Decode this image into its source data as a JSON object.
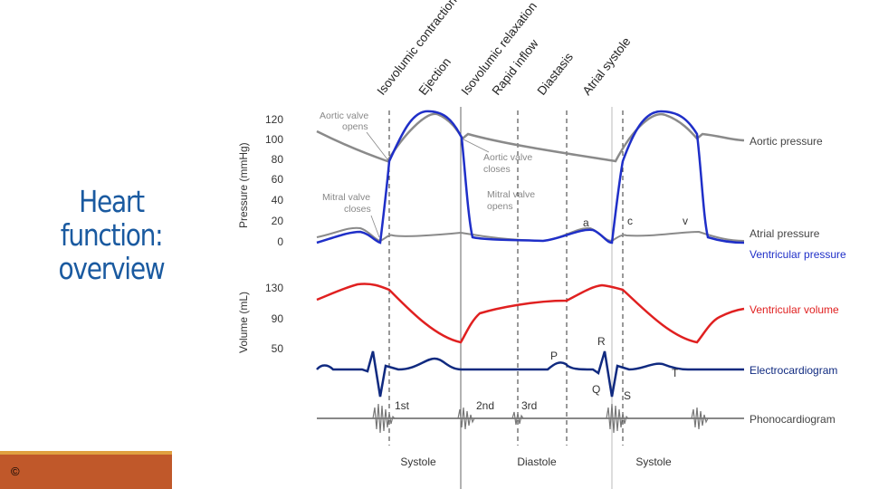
{
  "slide": {
    "title_lines": [
      "Heart",
      "function:",
      "overview"
    ],
    "copyright": "©"
  },
  "phases_top": [
    "Isovolumic contraction",
    "Ejection",
    "Isovolumic relaxation",
    "Rapid inflow",
    "Diastasis",
    "Atrial systole"
  ],
  "pressure_axis": {
    "label": "Pressure (mmHg)",
    "ticks": [
      "120",
      "100",
      "80",
      "60",
      "40",
      "20",
      "0"
    ]
  },
  "volume_axis": {
    "label": "Volume (mL)",
    "ticks": [
      "130",
      "90",
      "50"
    ]
  },
  "annotations": {
    "aortic_opens": [
      "Aortic valve",
      "opens"
    ],
    "aortic_closes": [
      "Aortic valve",
      "closes"
    ],
    "mitral_closes": [
      "Mitral valve",
      "closes"
    ],
    "mitral_opens": [
      "Mitral valve",
      "opens"
    ]
  },
  "wave_labels": {
    "a": "a",
    "c": "c",
    "v": "v",
    "P": "P",
    "R": "R",
    "Q": "Q",
    "S": "S",
    "T": "T"
  },
  "heart_sounds": {
    "first": "1st",
    "second": "2nd",
    "third": "3rd"
  },
  "legend": {
    "aortic_pressure": "Aortic pressure",
    "atrial_pressure": "Atrial pressure",
    "ventricular_pressure": "Ventricular pressure",
    "ventricular_volume": "Ventricular volume",
    "ecg": "Electrocardiogram",
    "phono": "Phonocardiogram"
  },
  "bottom_phases": [
    "Systole",
    "Diastole",
    "Systole"
  ],
  "colors": {
    "title": "#1a5aa0",
    "ventricular_pressure": "#1f2fc8",
    "ventricular_volume": "#e02020",
    "ecg": "#102a80",
    "aortic": "#888888",
    "footer": "#c0582a"
  }
}
